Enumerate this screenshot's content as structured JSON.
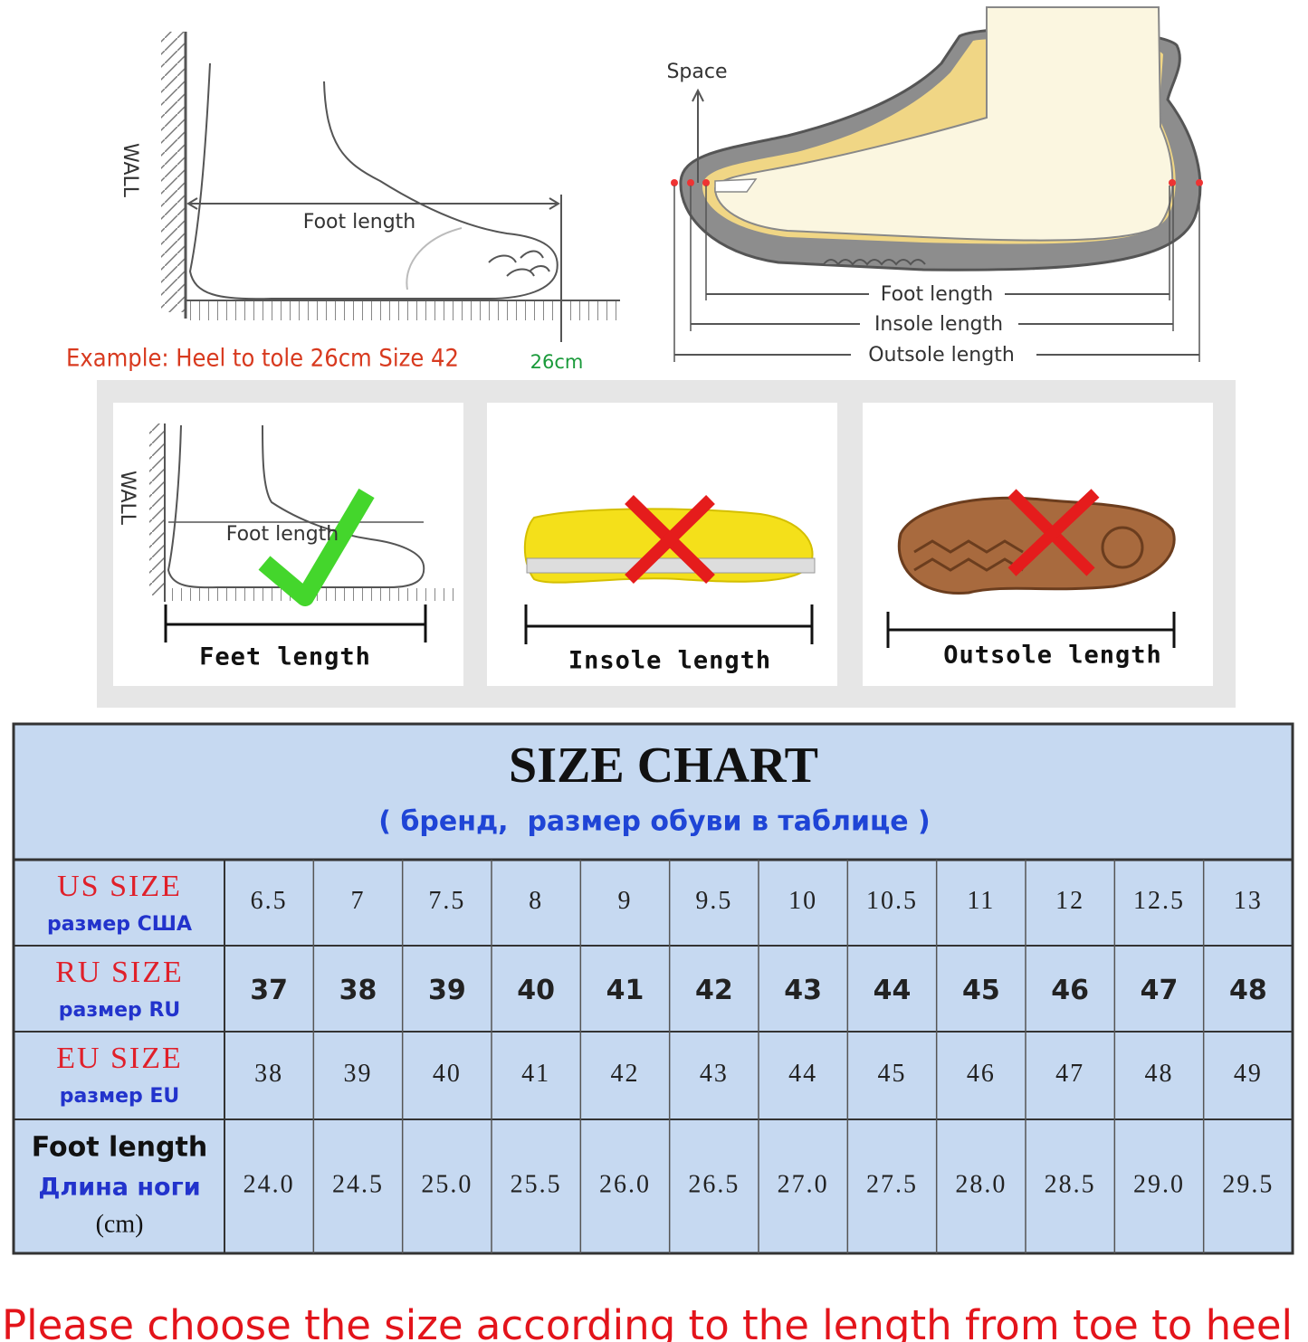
{
  "top_left": {
    "wall": "WALL",
    "foot_length": "Foot length",
    "example": "Example: Heel to tole 26cm Size 42",
    "mark": "26cm"
  },
  "top_right": {
    "space": "Space",
    "foot_length": "Foot length",
    "insole_length": "Insole length",
    "outsole_length": "Outsole length"
  },
  "panels": [
    {
      "wall": "WALL",
      "foot_length": "Foot length",
      "caption": "Feet length"
    },
    {
      "caption": "Insole length"
    },
    {
      "caption": "Outsole length"
    }
  ],
  "table": {
    "title": "SIZE CHART",
    "subtitle": "( бренд,  размер обуви в таблице )",
    "rows": [
      {
        "label": "US SIZE",
        "sublabel": "размер США",
        "values": [
          "6.5",
          "7",
          "7.5",
          "8",
          "9",
          "9.5",
          "10",
          "10.5",
          "11",
          "12",
          "12.5",
          "13"
        ]
      },
      {
        "label": "RU SIZE",
        "sublabel": "размер RU",
        "values": [
          "37",
          "38",
          "39",
          "40",
          "41",
          "42",
          "43",
          "44",
          "45",
          "46",
          "47",
          "48"
        ]
      },
      {
        "label": "EU SIZE",
        "sublabel": "размер EU",
        "values": [
          "38",
          "39",
          "40",
          "41",
          "42",
          "43",
          "44",
          "45",
          "46",
          "47",
          "48",
          "49"
        ]
      },
      {
        "label": "Foot length",
        "sublabel": "Длина ноги",
        "unit": "(cm)",
        "values": [
          "24.0",
          "24.5",
          "25.0",
          "25.5",
          "26.0",
          "26.5",
          "27.0",
          "27.5",
          "28.0",
          "28.5",
          "29.0",
          "29.5"
        ]
      }
    ]
  },
  "footer": "Please choose the size according to the length from toe to heel"
}
